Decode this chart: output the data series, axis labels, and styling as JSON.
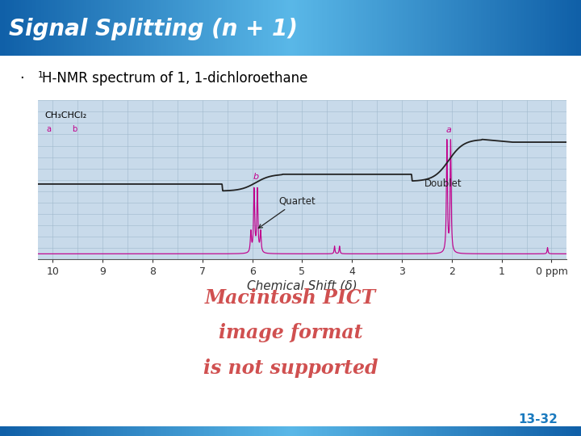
{
  "title": "Signal Splitting (n + 1)",
  "title_color": "#ffffff",
  "bullet_text_pre": "·  ",
  "bullet_super": "1",
  "bullet_text_post": "H-NMR spectrum of 1, 1-dichloroethane",
  "xlabel": "Chemical Shift (δ)",
  "xticks": [
    10,
    9,
    8,
    7,
    6,
    5,
    4,
    3,
    2,
    1,
    0
  ],
  "xtick_labels": [
    "10",
    "9",
    "8",
    "7",
    "6",
    "5",
    "4",
    "3",
    "2",
    "1",
    "0 ppm"
  ],
  "spectrum_bg": "#c8daea",
  "grid_color": "#a0b8cc",
  "nmr_color": "#c0008c",
  "integration_color": "#222222",
  "label_a": "a",
  "label_b": "b",
  "label_quartet": "Quartet",
  "label_doublet": "Doublet",
  "pict_text_line1": "Macintosh PICT",
  "pict_text_line2": "image format",
  "pict_text_line3": "is not supported",
  "pict_text_color": "#d05050",
  "page_num": "13-32",
  "page_num_color": "#1a7abf",
  "bg_color": "#ffffff",
  "title_grad_left": "#1060a8",
  "title_grad_mid": "#5ab8e8",
  "title_grad_right": "#1060a8"
}
